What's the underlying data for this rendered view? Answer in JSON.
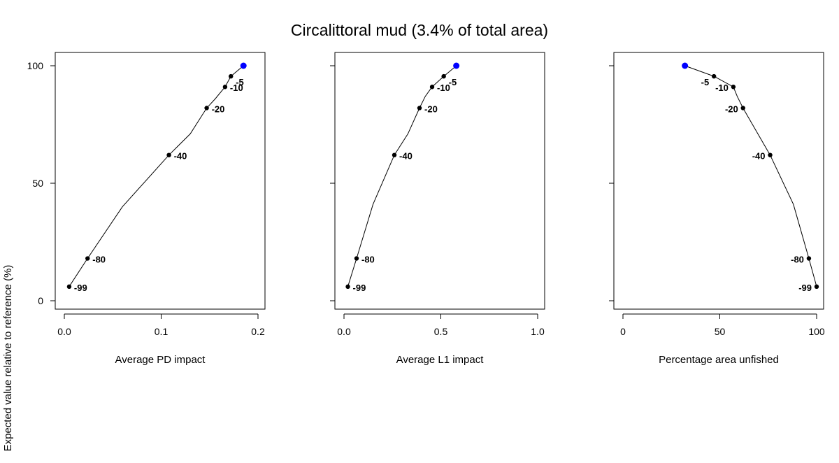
{
  "title": "Circalittoral mud (3.4% of total area)",
  "ylabel": "Expected value relative to reference (%)",
  "colors": {
    "line": "#000000",
    "point": "#000000",
    "highlight": "#0000ff"
  },
  "chart_data": [
    {
      "type": "line",
      "xlabel": "Average PD impact",
      "xlim": [
        0,
        0.2
      ],
      "ylim": [
        0,
        100
      ],
      "x_ticks": [
        "0.0",
        "0.1",
        "0.2"
      ],
      "y_ticks": [
        "0",
        "50",
        "100"
      ],
      "curve": {
        "x": [
          0.005,
          0.024,
          0.06,
          0.108,
          0.13,
          0.147,
          0.156,
          0.166,
          0.172,
          0.185
        ],
        "y": [
          6,
          18,
          40,
          62,
          71,
          82,
          86,
          91,
          95.5,
          100
        ]
      },
      "points": [
        {
          "x": 0.005,
          "y": 6,
          "label": "-99"
        },
        {
          "x": 0.024,
          "y": 18,
          "label": "-80"
        },
        {
          "x": 0.108,
          "y": 62,
          "label": "-40"
        },
        {
          "x": 0.147,
          "y": 82,
          "label": "-20"
        },
        {
          "x": 0.166,
          "y": 91,
          "label": "-10"
        },
        {
          "x": 0.172,
          "y": 95.5,
          "label": "-5"
        }
      ],
      "highlight": {
        "x": 0.185,
        "y": 100
      }
    },
    {
      "type": "line",
      "xlabel": "Average L1 impact",
      "xlim": [
        0,
        1.0
      ],
      "ylim": [
        0,
        100
      ],
      "x_ticks": [
        "0.0",
        "0.5",
        "1.0"
      ],
      "y_ticks": [
        "0",
        "50",
        "100"
      ],
      "curve": {
        "x": [
          0.02,
          0.065,
          0.15,
          0.26,
          0.33,
          0.39,
          0.42,
          0.455,
          0.515,
          0.58
        ],
        "y": [
          6,
          18,
          41,
          62,
          71,
          82,
          87,
          91,
          95.5,
          100
        ]
      },
      "points": [
        {
          "x": 0.02,
          "y": 6,
          "label": "-99"
        },
        {
          "x": 0.065,
          "y": 18,
          "label": "-80"
        },
        {
          "x": 0.26,
          "y": 62,
          "label": "-40"
        },
        {
          "x": 0.39,
          "y": 82,
          "label": "-20"
        },
        {
          "x": 0.455,
          "y": 91,
          "label": "-10"
        },
        {
          "x": 0.515,
          "y": 95.5,
          "label": "-5"
        }
      ],
      "highlight": {
        "x": 0.58,
        "y": 100
      }
    },
    {
      "type": "line",
      "xlabel": "Percentage area unfished",
      "xlim": [
        0,
        100
      ],
      "ylim": [
        0,
        100
      ],
      "x_ticks": [
        "0",
        "50",
        "100"
      ],
      "y_ticks": [
        "0",
        "50",
        "100"
      ],
      "curve": {
        "x": [
          100,
          96,
          88,
          76,
          69,
          62,
          59,
          57,
          47,
          32
        ],
        "y": [
          6,
          18,
          41,
          62,
          72,
          82,
          87,
          91,
          95.5,
          100
        ]
      },
      "points": [
        {
          "x": 100,
          "y": 6,
          "label": "-99"
        },
        {
          "x": 96,
          "y": 18,
          "label": "-80"
        },
        {
          "x": 76,
          "y": 62,
          "label": "-40"
        },
        {
          "x": 62,
          "y": 82,
          "label": "-20"
        },
        {
          "x": 57,
          "y": 91,
          "label": "-10"
        },
        {
          "x": 47,
          "y": 95.5,
          "label": "-5"
        }
      ],
      "highlight": {
        "x": 32,
        "y": 100
      }
    }
  ]
}
